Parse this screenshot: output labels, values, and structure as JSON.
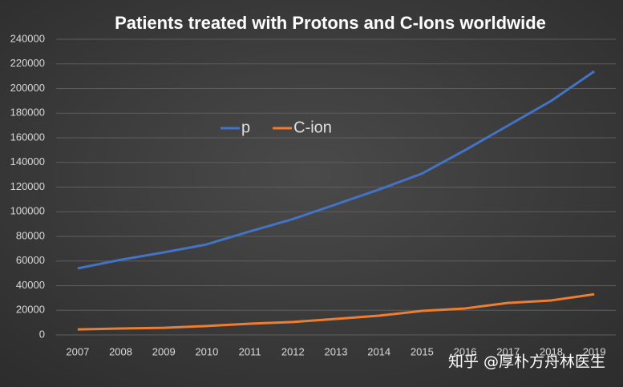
{
  "chart_data": {
    "type": "line",
    "title": "Patients treated with Protons and C-Ions worldwide",
    "categories": [
      "2007",
      "2008",
      "2009",
      "2010",
      "2011",
      "2012",
      "2013",
      "2014",
      "2015",
      "2016",
      "2017",
      "2018",
      "2019"
    ],
    "series": [
      {
        "name": "p",
        "color": "#4472c4",
        "values": [
          54000,
          61000,
          67000,
          73500,
          84000,
          94000,
          106000,
          118000,
          131000,
          150000,
          170000,
          190000,
          214000
        ]
      },
      {
        "name": "C-ion",
        "color": "#ed7d31",
        "values": [
          4500,
          5200,
          5800,
          7200,
          9100,
          10500,
          13000,
          15600,
          19500,
          21500,
          26000,
          28000,
          33000
        ]
      }
    ],
    "ylim": [
      0,
      240000
    ],
    "yticks": [
      0,
      20000,
      40000,
      60000,
      80000,
      100000,
      120000,
      140000,
      160000,
      180000,
      200000,
      220000,
      240000
    ],
    "grid": true,
    "legend": "top-left",
    "watermark": "知乎 @厚朴方舟林医生"
  }
}
